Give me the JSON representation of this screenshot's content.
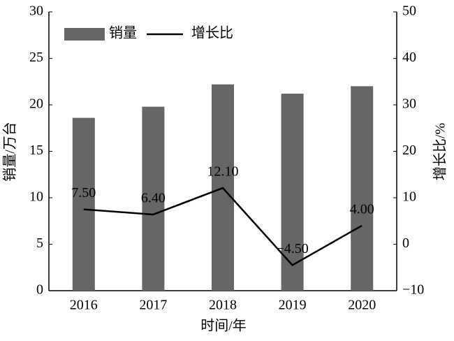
{
  "chart_data": {
    "type": "bar",
    "categories": [
      "2016",
      "2017",
      "2018",
      "2019",
      "2020"
    ],
    "x_label": "时间/年",
    "y_label": "销量/万台",
    "y2_label": "增长比/%",
    "series": [
      {
        "name": "销量",
        "type": "bar",
        "color": "#666666",
        "values": [
          18.6,
          19.8,
          22.2,
          21.2,
          22.0
        ]
      },
      {
        "name": "增长比",
        "type": "line",
        "axis": "y2",
        "color": "#000000",
        "values": [
          7.5,
          6.4,
          12.1,
          -4.5,
          4.0
        ],
        "value_labels": [
          "7.50",
          "6.40",
          "12.10",
          "−4.50",
          "4.00"
        ]
      }
    ],
    "ylim": [
      0,
      30
    ],
    "yticks": [
      0,
      5,
      10,
      15,
      20,
      25,
      30
    ],
    "y2lim": [
      -10,
      50
    ],
    "y2ticks": [
      {
        "value": -10,
        "label": "−10"
      },
      0,
      10,
      20,
      30,
      40,
      50
    ],
    "legend": "upper left"
  }
}
